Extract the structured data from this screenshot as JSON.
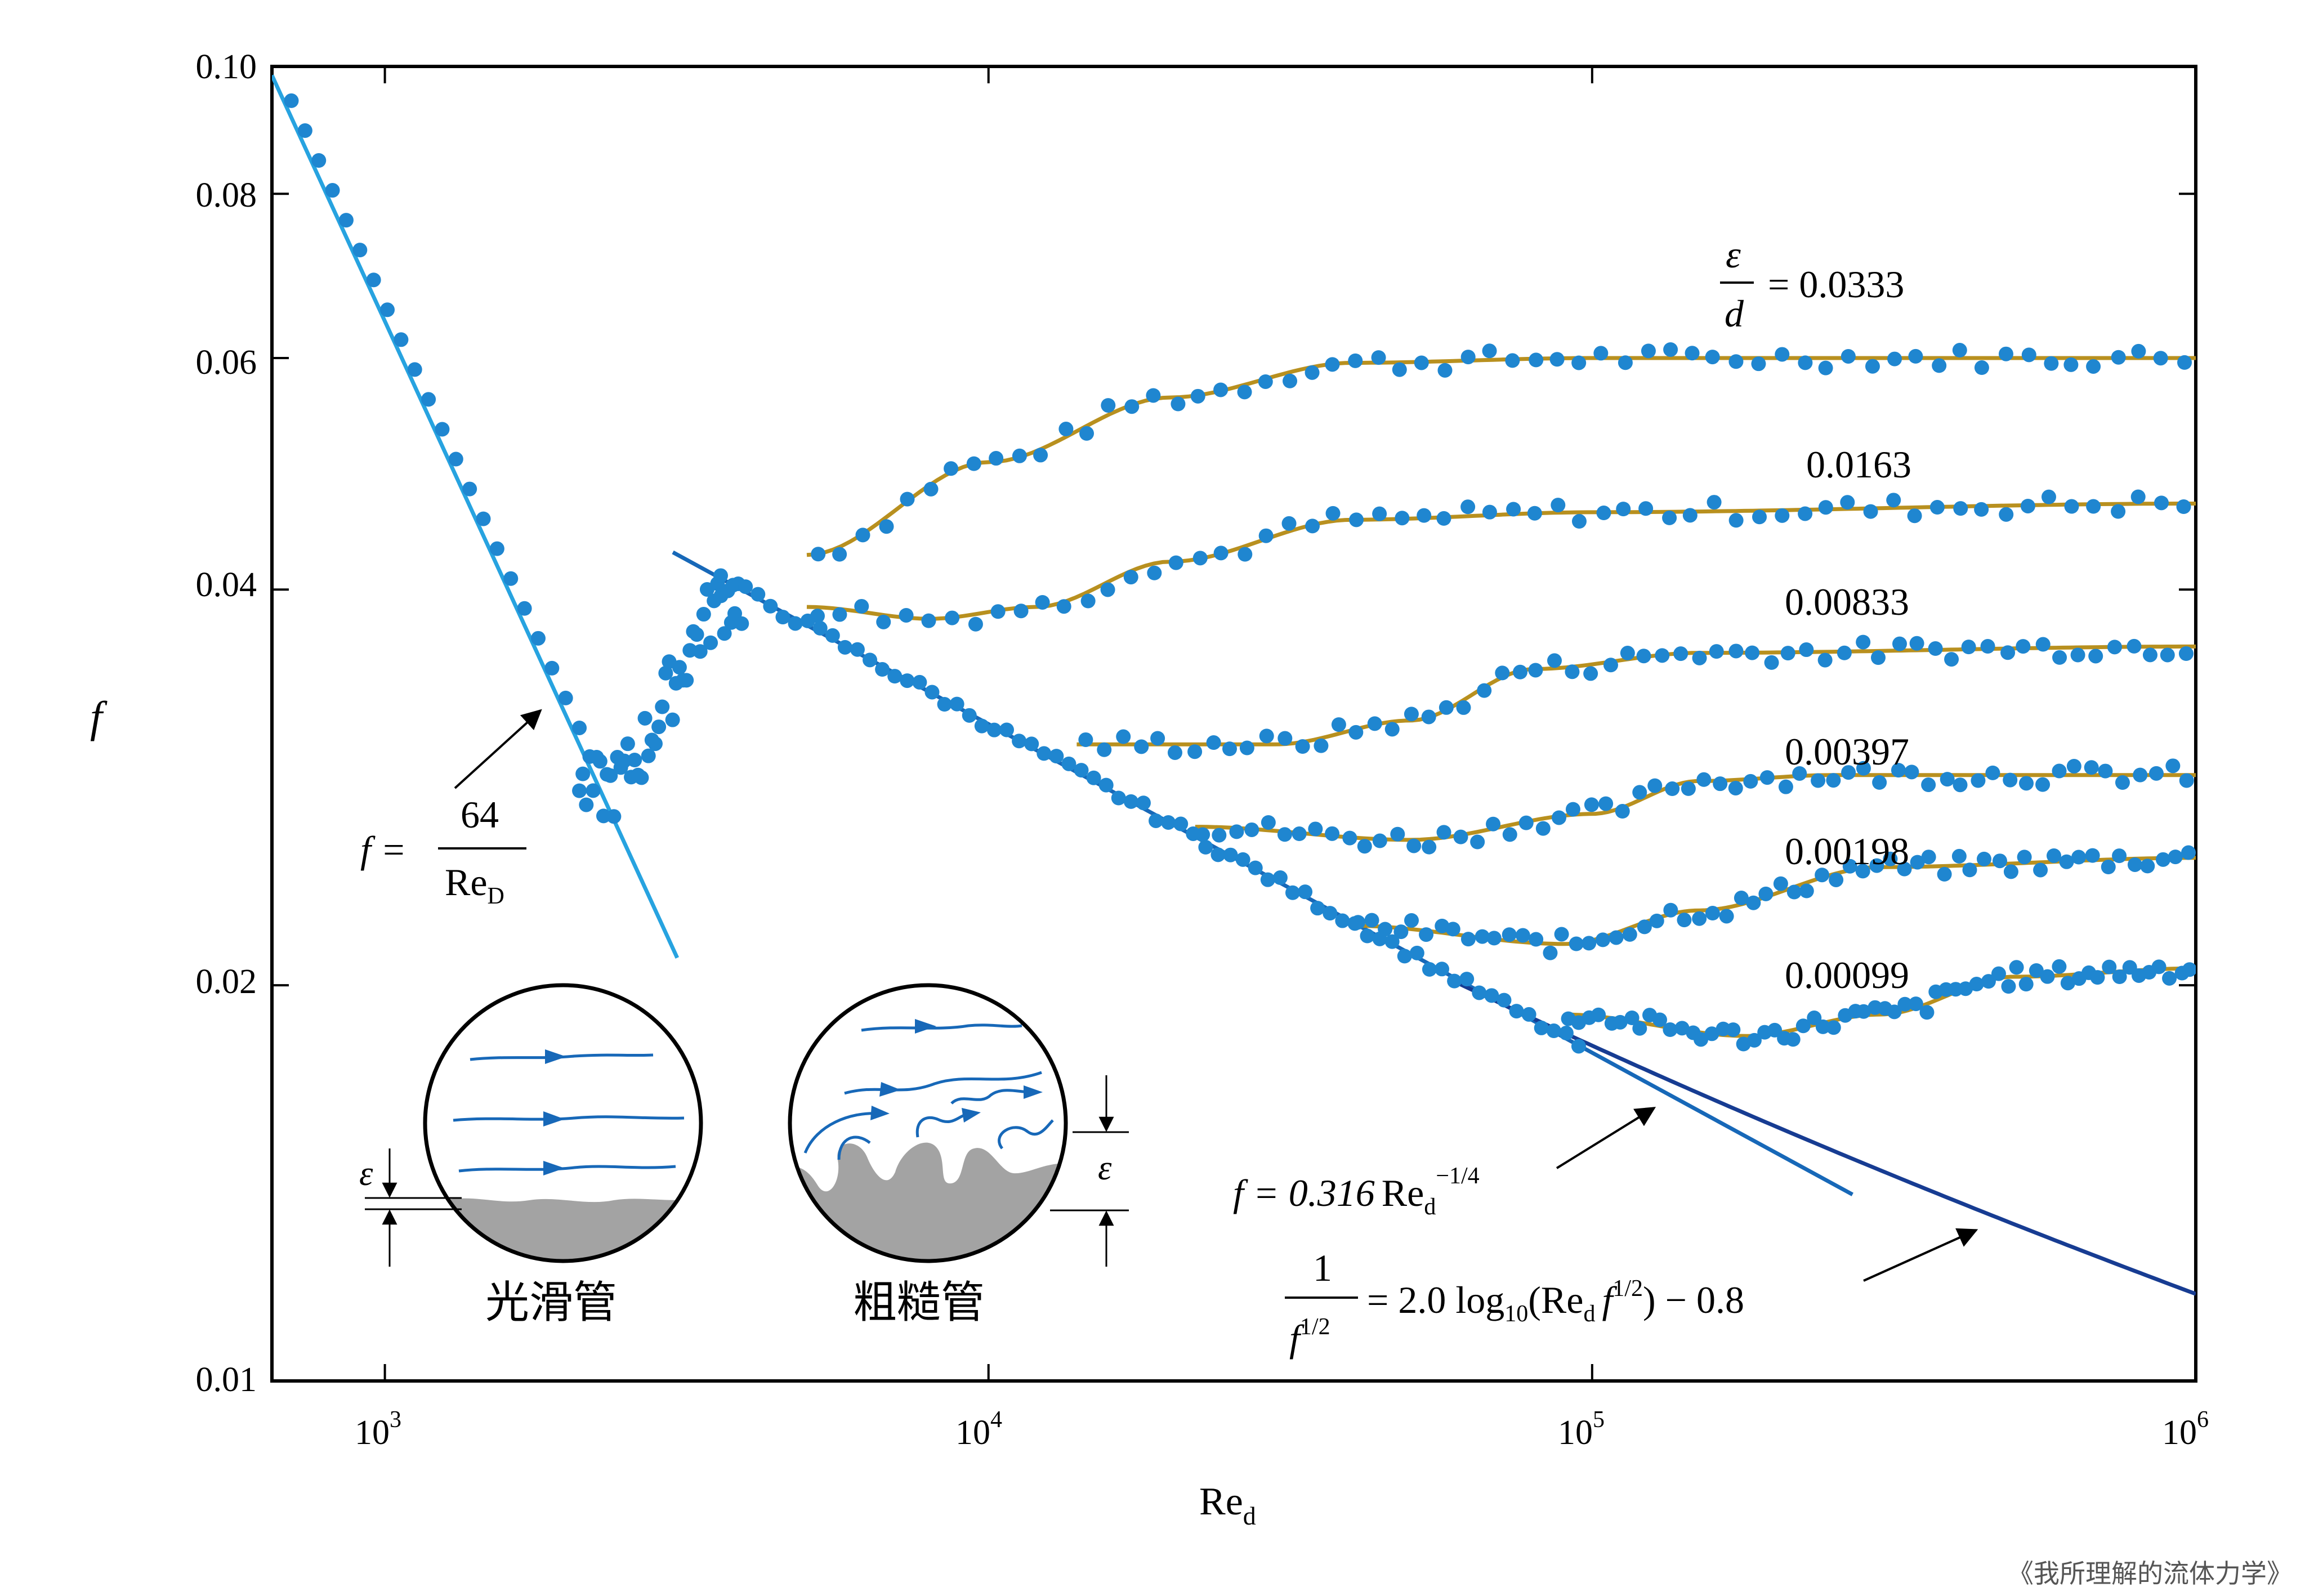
{
  "colors": {
    "data_points": "#1f86d0",
    "laminar_line": "#27a3e0",
    "turbulent_line": "#1768b8",
    "dark_curve": "#173c92",
    "fit_curves": "#b8901f",
    "pipe_fill": "#a3a3a3",
    "axis": "#000000"
  },
  "chart_data": {
    "type": "scatter",
    "x_scale": "log",
    "y_scale": "log",
    "xlim": [
      650,
      1000000
    ],
    "ylim": [
      0.01,
      0.1
    ],
    "xlabel": {
      "main": "Re",
      "sub": "d"
    },
    "ylabel": "f",
    "y_ticks": [
      {
        "value": 0.01,
        "label": "0.01"
      },
      {
        "value": 0.02,
        "label": "0.02"
      },
      {
        "value": 0.04,
        "label": "0.04"
      },
      {
        "value": 0.06,
        "label": "0.06"
      },
      {
        "value": 0.08,
        "label": "0.08"
      },
      {
        "value": 0.1,
        "label": "0.10"
      }
    ],
    "x_ticks": [
      {
        "value": 1000,
        "base": "10",
        "exp": "3"
      },
      {
        "value": 10000,
        "base": "10",
        "exp": "4"
      },
      {
        "value": 100000,
        "base": "10",
        "exp": "5"
      },
      {
        "value": 1000000,
        "base": "10",
        "exp": "6"
      }
    ],
    "roughness_label": {
      "num": "ε",
      "den": "d",
      "eq": "= 0.0333"
    },
    "series": [
      {
        "label": "0.0333",
        "values": [
          [
            5000,
            0.0425
          ],
          [
            10000,
            0.05
          ],
          [
            20000,
            0.056
          ],
          [
            40000,
            0.0595
          ],
          [
            100000,
            0.06
          ],
          [
            1000000,
            0.06
          ]
        ]
      },
      {
        "label": "0.0163",
        "values": [
          [
            5000,
            0.0388
          ],
          [
            8000,
            0.038
          ],
          [
            12000,
            0.0388
          ],
          [
            20000,
            0.042
          ],
          [
            40000,
            0.0452
          ],
          [
            100000,
            0.0458
          ],
          [
            1000000,
            0.0465
          ]
        ]
      },
      {
        "label": "0.00833",
        "values": [
          [
            14000,
            0.0305
          ],
          [
            30000,
            0.0305
          ],
          [
            50000,
            0.0318
          ],
          [
            80000,
            0.0348
          ],
          [
            150000,
            0.0358
          ],
          [
            1000000,
            0.0362
          ]
        ]
      },
      {
        "label": "0.00397",
        "values": [
          [
            22000,
            0.0264
          ],
          [
            50000,
            0.0258
          ],
          [
            100000,
            0.027
          ],
          [
            150000,
            0.0286
          ],
          [
            250000,
            0.0289
          ],
          [
            1000000,
            0.0289
          ]
        ]
      },
      {
        "label": "0.00198",
        "values": [
          [
            40000,
            0.0222
          ],
          [
            90000,
            0.0215
          ],
          [
            150000,
            0.0228
          ],
          [
            300000,
            0.0246
          ],
          [
            1000000,
            0.025
          ]
        ]
      },
      {
        "label": "0.00099",
        "values": [
          [
            90000,
            0.019
          ],
          [
            180000,
            0.0183
          ],
          [
            300000,
            0.019
          ],
          [
            500000,
            0.0203
          ],
          [
            1000000,
            0.0206
          ]
        ]
      }
    ],
    "laminar": {
      "equation": {
        "lhs": "f =",
        "num": "64",
        "den_main": "Re",
        "den_sub": "D"
      }
    },
    "blasius": {
      "equation": {
        "lhs": "f = 0.316",
        "re": "Re",
        "re_sub": "d",
        "exp": "−1/4"
      }
    },
    "prandtl": {
      "equation": {
        "num": "1",
        "den": "f",
        "den_exp": "1/2",
        "rhs_start": "= 2.0 log",
        "log_sub": "10",
        "paren": "(Re",
        "re_sub": "d",
        "f": "f",
        "f_exp": "1/2",
        "end": ") − 0.8"
      }
    }
  },
  "insets": {
    "smooth": {
      "label": "光滑管",
      "epsilon": "ε"
    },
    "rough": {
      "label": "粗糙管",
      "epsilon": "ε"
    }
  },
  "credit": "《我所理解的流体力学》"
}
